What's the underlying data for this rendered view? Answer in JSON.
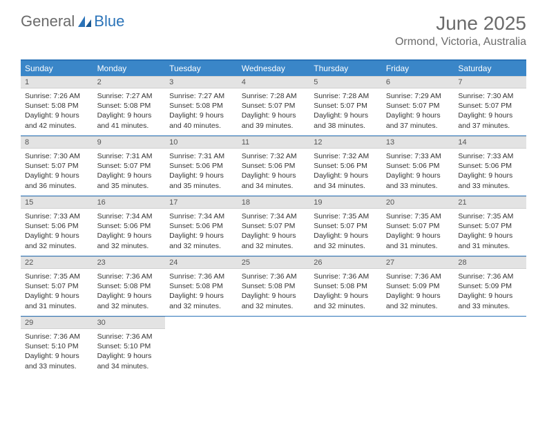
{
  "logo": {
    "part1": "General",
    "part2": "Blue"
  },
  "title": {
    "month": "June 2025",
    "location": "Ormond, Victoria, Australia"
  },
  "colors": {
    "header_bar": "#3a86c8",
    "rule": "#2a73b8",
    "daynum_bg": "#e3e3e3",
    "text": "#333333",
    "muted": "#6a6a6a",
    "white": "#ffffff"
  },
  "fonts": {
    "title_size": 28,
    "location_size": 16,
    "dayhead_size": 12,
    "daynum_size": 11,
    "info_size": 10.5
  },
  "dayNames": [
    "Sunday",
    "Monday",
    "Tuesday",
    "Wednesday",
    "Thursday",
    "Friday",
    "Saturday"
  ],
  "weeks": [
    [
      {
        "n": "1",
        "sr": "7:26 AM",
        "ss": "5:08 PM",
        "dl": "9 hours and 42 minutes."
      },
      {
        "n": "2",
        "sr": "7:27 AM",
        "ss": "5:08 PM",
        "dl": "9 hours and 41 minutes."
      },
      {
        "n": "3",
        "sr": "7:27 AM",
        "ss": "5:08 PM",
        "dl": "9 hours and 40 minutes."
      },
      {
        "n": "4",
        "sr": "7:28 AM",
        "ss": "5:07 PM",
        "dl": "9 hours and 39 minutes."
      },
      {
        "n": "5",
        "sr": "7:28 AM",
        "ss": "5:07 PM",
        "dl": "9 hours and 38 minutes."
      },
      {
        "n": "6",
        "sr": "7:29 AM",
        "ss": "5:07 PM",
        "dl": "9 hours and 37 minutes."
      },
      {
        "n": "7",
        "sr": "7:30 AM",
        "ss": "5:07 PM",
        "dl": "9 hours and 37 minutes."
      }
    ],
    [
      {
        "n": "8",
        "sr": "7:30 AM",
        "ss": "5:07 PM",
        "dl": "9 hours and 36 minutes."
      },
      {
        "n": "9",
        "sr": "7:31 AM",
        "ss": "5:07 PM",
        "dl": "9 hours and 35 minutes."
      },
      {
        "n": "10",
        "sr": "7:31 AM",
        "ss": "5:06 PM",
        "dl": "9 hours and 35 minutes."
      },
      {
        "n": "11",
        "sr": "7:32 AM",
        "ss": "5:06 PM",
        "dl": "9 hours and 34 minutes."
      },
      {
        "n": "12",
        "sr": "7:32 AM",
        "ss": "5:06 PM",
        "dl": "9 hours and 34 minutes."
      },
      {
        "n": "13",
        "sr": "7:33 AM",
        "ss": "5:06 PM",
        "dl": "9 hours and 33 minutes."
      },
      {
        "n": "14",
        "sr": "7:33 AM",
        "ss": "5:06 PM",
        "dl": "9 hours and 33 minutes."
      }
    ],
    [
      {
        "n": "15",
        "sr": "7:33 AM",
        "ss": "5:06 PM",
        "dl": "9 hours and 32 minutes."
      },
      {
        "n": "16",
        "sr": "7:34 AM",
        "ss": "5:06 PM",
        "dl": "9 hours and 32 minutes."
      },
      {
        "n": "17",
        "sr": "7:34 AM",
        "ss": "5:06 PM",
        "dl": "9 hours and 32 minutes."
      },
      {
        "n": "18",
        "sr": "7:34 AM",
        "ss": "5:07 PM",
        "dl": "9 hours and 32 minutes."
      },
      {
        "n": "19",
        "sr": "7:35 AM",
        "ss": "5:07 PM",
        "dl": "9 hours and 32 minutes."
      },
      {
        "n": "20",
        "sr": "7:35 AM",
        "ss": "5:07 PM",
        "dl": "9 hours and 31 minutes."
      },
      {
        "n": "21",
        "sr": "7:35 AM",
        "ss": "5:07 PM",
        "dl": "9 hours and 31 minutes."
      }
    ],
    [
      {
        "n": "22",
        "sr": "7:35 AM",
        "ss": "5:07 PM",
        "dl": "9 hours and 31 minutes."
      },
      {
        "n": "23",
        "sr": "7:36 AM",
        "ss": "5:08 PM",
        "dl": "9 hours and 32 minutes."
      },
      {
        "n": "24",
        "sr": "7:36 AM",
        "ss": "5:08 PM",
        "dl": "9 hours and 32 minutes."
      },
      {
        "n": "25",
        "sr": "7:36 AM",
        "ss": "5:08 PM",
        "dl": "9 hours and 32 minutes."
      },
      {
        "n": "26",
        "sr": "7:36 AM",
        "ss": "5:08 PM",
        "dl": "9 hours and 32 minutes."
      },
      {
        "n": "27",
        "sr": "7:36 AM",
        "ss": "5:09 PM",
        "dl": "9 hours and 32 minutes."
      },
      {
        "n": "28",
        "sr": "7:36 AM",
        "ss": "5:09 PM",
        "dl": "9 hours and 33 minutes."
      }
    ],
    [
      {
        "n": "29",
        "sr": "7:36 AM",
        "ss": "5:10 PM",
        "dl": "9 hours and 33 minutes."
      },
      {
        "n": "30",
        "sr": "7:36 AM",
        "ss": "5:10 PM",
        "dl": "9 hours and 34 minutes."
      },
      null,
      null,
      null,
      null,
      null
    ]
  ],
  "labels": {
    "sunrise": "Sunrise:",
    "sunset": "Sunset:",
    "daylight": "Daylight:"
  }
}
